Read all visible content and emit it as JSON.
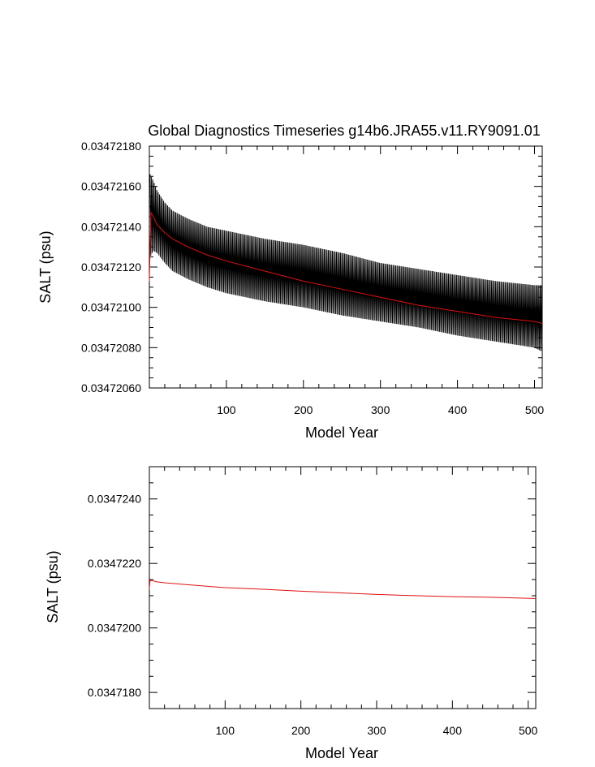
{
  "chart_data": [
    {
      "type": "line",
      "title": "Global Diagnostics Timeseries g14b6.JRA55.v11.RY9091.01",
      "xlabel": "Model Year",
      "ylabel": "SALT (psu)",
      "xlim": [
        0,
        510
      ],
      "ylim": [
        0.0347206,
        0.0347218
      ],
      "x_ticks": [
        100,
        200,
        300,
        400,
        500
      ],
      "y_ticks": [
        "0.03472060",
        "0.03472080",
        "0.03472100",
        "0.03472120",
        "0.03472140",
        "0.03472160",
        "0.03472180"
      ],
      "series": [
        {
          "color": "#000000",
          "style": "monthly oscillation envelope",
          "x": [
            1,
            5,
            10,
            20,
            30,
            50,
            75,
            100,
            150,
            200,
            250,
            300,
            350,
            400,
            450,
            500,
            510
          ],
          "upper": [
            0.03472166,
            0.03472163,
            0.03472158,
            0.03472152,
            0.03472148,
            0.03472144,
            0.0347214,
            0.03472138,
            0.03472134,
            0.03472131,
            0.03472127,
            0.03472122,
            0.03472119,
            0.03472116,
            0.03472113,
            0.03472111,
            0.03472111
          ],
          "lower": [
            0.03472125,
            0.03472128,
            0.03472127,
            0.03472122,
            0.03472118,
            0.03472114,
            0.0347211,
            0.03472107,
            0.03472103,
            0.034721,
            0.03472096,
            0.03472093,
            0.0347209,
            0.03472086,
            0.03472083,
            0.0347208,
            0.03472078
          ]
        },
        {
          "color": "#e01010",
          "style": "annual mean",
          "x": [
            0,
            1,
            2,
            5,
            10,
            20,
            30,
            50,
            75,
            100,
            150,
            200,
            250,
            300,
            350,
            400,
            450,
            500,
            510
          ],
          "values": [
            0.03472113,
            0.0347213,
            0.03472147,
            0.03472145,
            0.03472141,
            0.03472137,
            0.03472134,
            0.0347213,
            0.03472126,
            0.03472123,
            0.03472118,
            0.03472113,
            0.03472109,
            0.03472105,
            0.03472101,
            0.03472098,
            0.03472095,
            0.03472093,
            0.03472092
          ]
        }
      ]
    },
    {
      "type": "line",
      "title": "",
      "xlabel": "Model Year",
      "ylabel": "SALT (psu)",
      "xlim": [
        0,
        510
      ],
      "ylim": [
        0.0347175,
        0.034725
      ],
      "x_ticks": [
        100,
        200,
        300,
        400,
        500
      ],
      "y_ticks": [
        "0.0347180",
        "0.0347200",
        "0.0347220",
        "0.0347240"
      ],
      "series": [
        {
          "color": "#e01010",
          "style": "annual mean",
          "x": [
            0,
            1,
            2,
            5,
            10,
            20,
            50,
            100,
            150,
            200,
            250,
            300,
            350,
            400,
            450,
            500,
            510
          ],
          "values": [
            0.0347212,
            0.0347215,
            0.03472147,
            0.03472146,
            0.03472143,
            0.0347214,
            0.03472134,
            0.03472125,
            0.0347212,
            0.03472114,
            0.03472109,
            0.03472104,
            0.034721,
            0.03472097,
            0.03472095,
            0.03472092,
            0.03472091
          ]
        }
      ]
    }
  ]
}
